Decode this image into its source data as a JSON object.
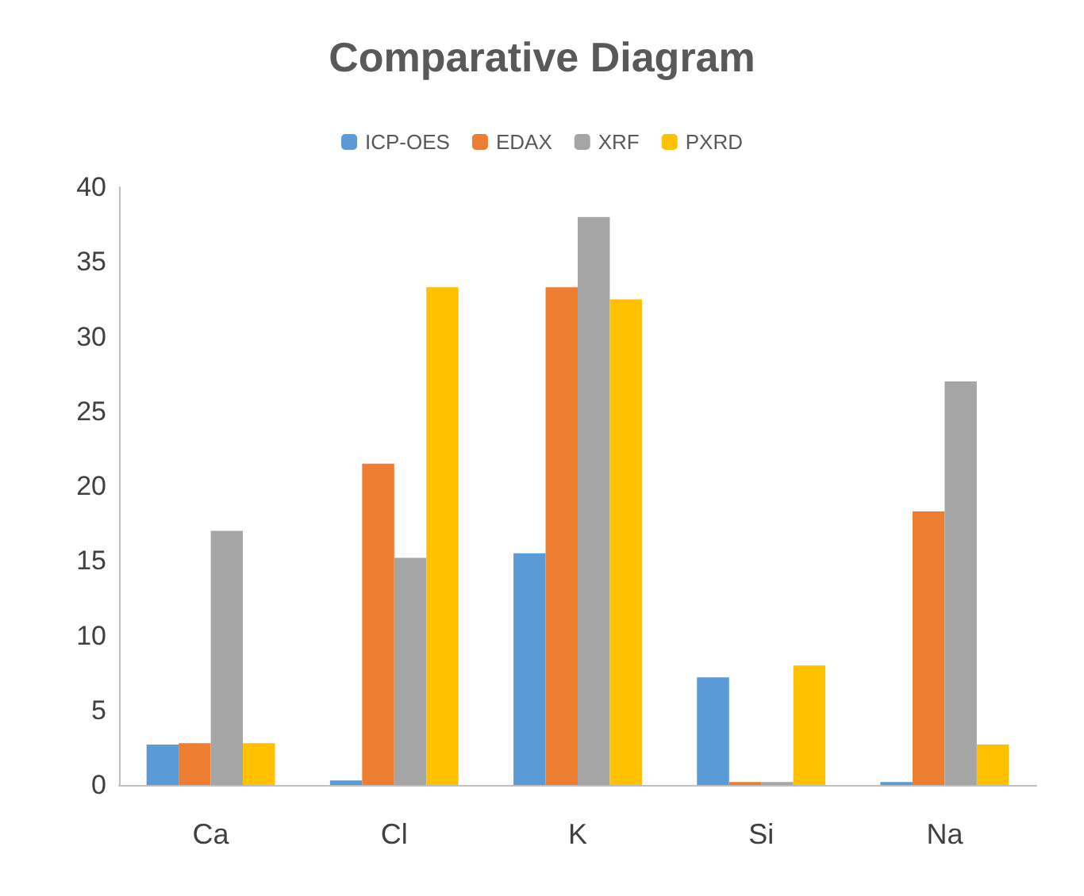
{
  "chart_data": {
    "type": "bar",
    "title": "Comparative Diagram",
    "categories": [
      "Ca",
      "Cl",
      "K",
      "Si",
      "Na"
    ],
    "series": [
      {
        "name": "ICP-OES",
        "color": "#5b9bd5",
        "values": [
          2.7,
          0.3,
          15.5,
          7.2,
          0.2
        ]
      },
      {
        "name": "EDAX",
        "color": "#ed7d31",
        "values": [
          2.8,
          21.5,
          33.3,
          0.2,
          18.3
        ]
      },
      {
        "name": "XRF",
        "color": "#a5a5a5",
        "values": [
          17,
          15.2,
          38,
          0.2,
          27
        ]
      },
      {
        "name": "PXRD",
        "color": "#ffc000",
        "values": [
          2.8,
          33.3,
          32.5,
          8,
          2.7
        ]
      }
    ],
    "ylim": [
      0,
      40
    ],
    "yticks": [
      0,
      5,
      10,
      15,
      20,
      25,
      30,
      35,
      40
    ],
    "grid": false,
    "legend": "top"
  }
}
